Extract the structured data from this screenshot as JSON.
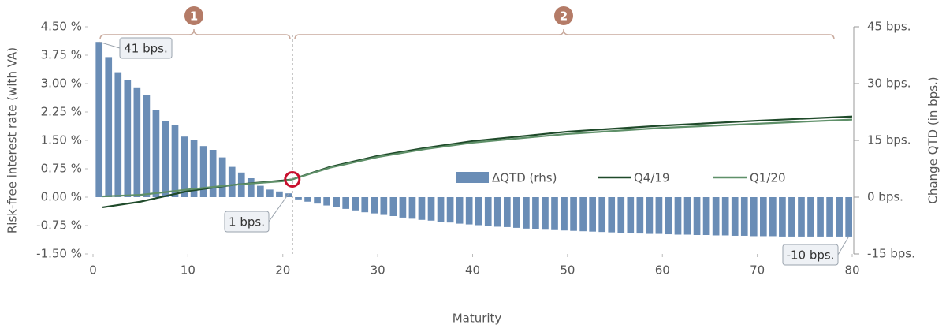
{
  "chart_data": {
    "type": "combo",
    "x_label": "Maturity",
    "y_label": "Risk-free interest rate (with VA)",
    "y2_label": "Change QTD (in bps.)",
    "xlim": [
      0,
      80
    ],
    "xticks": [
      0,
      10,
      20,
      30,
      40,
      50,
      60,
      70,
      80
    ],
    "ylim": [
      -1.5,
      4.5
    ],
    "yticks": [
      {
        "value": -1.5,
        "label": "-1.50 %"
      },
      {
        "value": -0.75,
        "label": "-0.75 %"
      },
      {
        "value": 0,
        "label": "0.00 %"
      },
      {
        "value": 0.75,
        "label": "0.75 %"
      },
      {
        "value": 1.5,
        "label": "1.50 %"
      },
      {
        "value": 2.25,
        "label": "2.25 %"
      },
      {
        "value": 3,
        "label": "3.00 %"
      },
      {
        "value": 3.75,
        "label": "3.75 %"
      },
      {
        "value": 4.5,
        "label": "4.50 %"
      }
    ],
    "y2lim": [
      -15,
      45
    ],
    "y2ticks": [
      {
        "value": -15,
        "label": "-15 bps."
      },
      {
        "value": 0,
        "label": "0 bps."
      },
      {
        "value": 15,
        "label": "15 bps."
      },
      {
        "value": 30,
        "label": "30 bps."
      },
      {
        "value": 45,
        "label": "45 bps."
      }
    ],
    "annotations": [
      "41 bps.",
      "1 bps.",
      "-10 bps.",
      "1",
      "2"
    ],
    "series": [
      {
        "name": "ΔQTD (rhs)",
        "type": "bar",
        "axis": "y2",
        "color": "#6a8db6",
        "x": [
          1,
          2,
          3,
          4,
          5,
          6,
          7,
          8,
          9,
          10,
          11,
          12,
          13,
          14,
          15,
          16,
          17,
          18,
          19,
          20,
          21,
          22,
          23,
          24,
          25,
          26,
          27,
          28,
          29,
          30,
          31,
          32,
          33,
          34,
          35,
          36,
          37,
          38,
          39,
          40,
          41,
          42,
          43,
          44,
          45,
          46,
          47,
          48,
          49,
          50,
          51,
          52,
          53,
          54,
          55,
          56,
          57,
          58,
          59,
          60,
          61,
          62,
          63,
          64,
          65,
          66,
          67,
          68,
          69,
          70,
          71,
          72,
          73,
          74,
          75,
          76,
          77,
          78,
          79,
          80
        ],
        "values": [
          41,
          37,
          33,
          31,
          29,
          27,
          23,
          20,
          19,
          16,
          15,
          13.5,
          12.5,
          10.5,
          8,
          6.5,
          5,
          3,
          2,
          1.5,
          1,
          -0.6,
          -1.2,
          -1.7,
          -2.2,
          -2.7,
          -3.1,
          -3.5,
          -4,
          -4.3,
          -4.7,
          -5,
          -5.4,
          -5.7,
          -6,
          -6.2,
          -6.5,
          -6.7,
          -7,
          -7.2,
          -7.4,
          -7.6,
          -7.8,
          -7.9,
          -8.1,
          -8.3,
          -8.4,
          -8.6,
          -8.7,
          -8.8,
          -8.9,
          -9,
          -9.1,
          -9.2,
          -9.3,
          -9.4,
          -9.5,
          -9.6,
          -9.7,
          -9.7,
          -9.8,
          -9.9,
          -9.9,
          -10,
          -10,
          -10.1,
          -10.1,
          -10.2,
          -10.2,
          -10.3,
          -10.3,
          -10.3,
          -10.4,
          -10.4,
          -10.4,
          -10.4,
          -10.4,
          -10.4,
          -10.4,
          -10.4
        ]
      },
      {
        "name": "Q4/19",
        "type": "line",
        "color": "#1f4a2a",
        "x": [
          1,
          5,
          10,
          15,
          20,
          21,
          25,
          30,
          35,
          40,
          50,
          60,
          70,
          80
        ],
        "values": [
          -0.27,
          -0.12,
          0.16,
          0.33,
          0.44,
          0.47,
          0.8,
          1.09,
          1.3,
          1.48,
          1.73,
          1.89,
          2.02,
          2.13
        ]
      },
      {
        "name": "Q1/20",
        "type": "line",
        "color": "#5f9069",
        "x": [
          1,
          5,
          10,
          15,
          20,
          21,
          25,
          30,
          35,
          40,
          50,
          60,
          70,
          80
        ],
        "values": [
          0.02,
          0.06,
          0.2,
          0.33,
          0.42,
          0.47,
          0.78,
          1.06,
          1.27,
          1.44,
          1.67,
          1.83,
          1.94,
          2.05
        ]
      }
    ]
  }
}
